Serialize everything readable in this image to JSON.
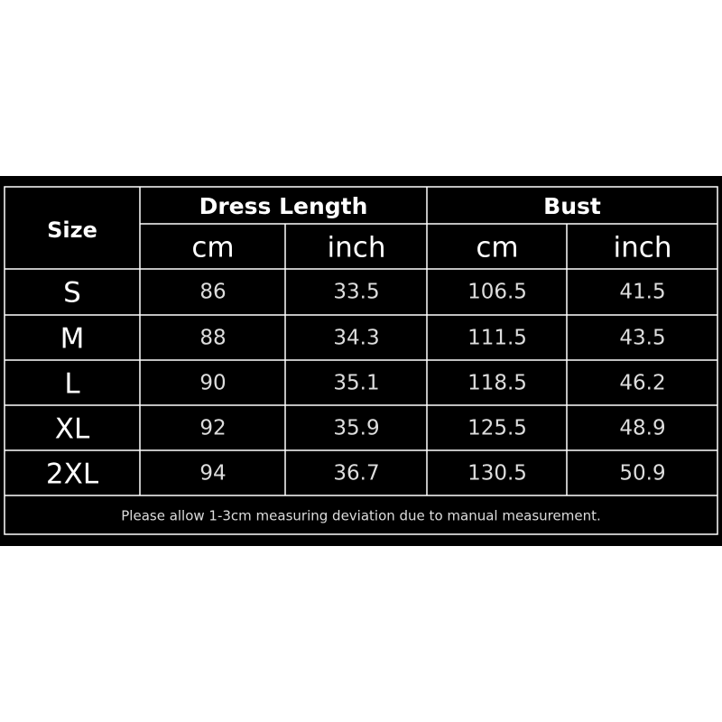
{
  "table": {
    "header": {
      "size": "Size",
      "groups": [
        "Dress Length",
        "Bust"
      ],
      "units": [
        "cm",
        "inch",
        "cm",
        "inch"
      ]
    },
    "rows": [
      [
        "S",
        "86",
        "33.5",
        "106.5",
        "41.5"
      ],
      [
        "M",
        "88",
        "34.3",
        "111.5",
        "43.5"
      ],
      [
        "L",
        "90",
        "35.1",
        "118.5",
        "46.2"
      ],
      [
        "XL",
        "92",
        "35.9",
        "125.5",
        "48.9"
      ],
      [
        "2XL",
        "94",
        "36.7",
        "130.5",
        "50.9"
      ]
    ],
    "note": "Please allow 1-3cm measuring deviation due to manual measurement."
  }
}
